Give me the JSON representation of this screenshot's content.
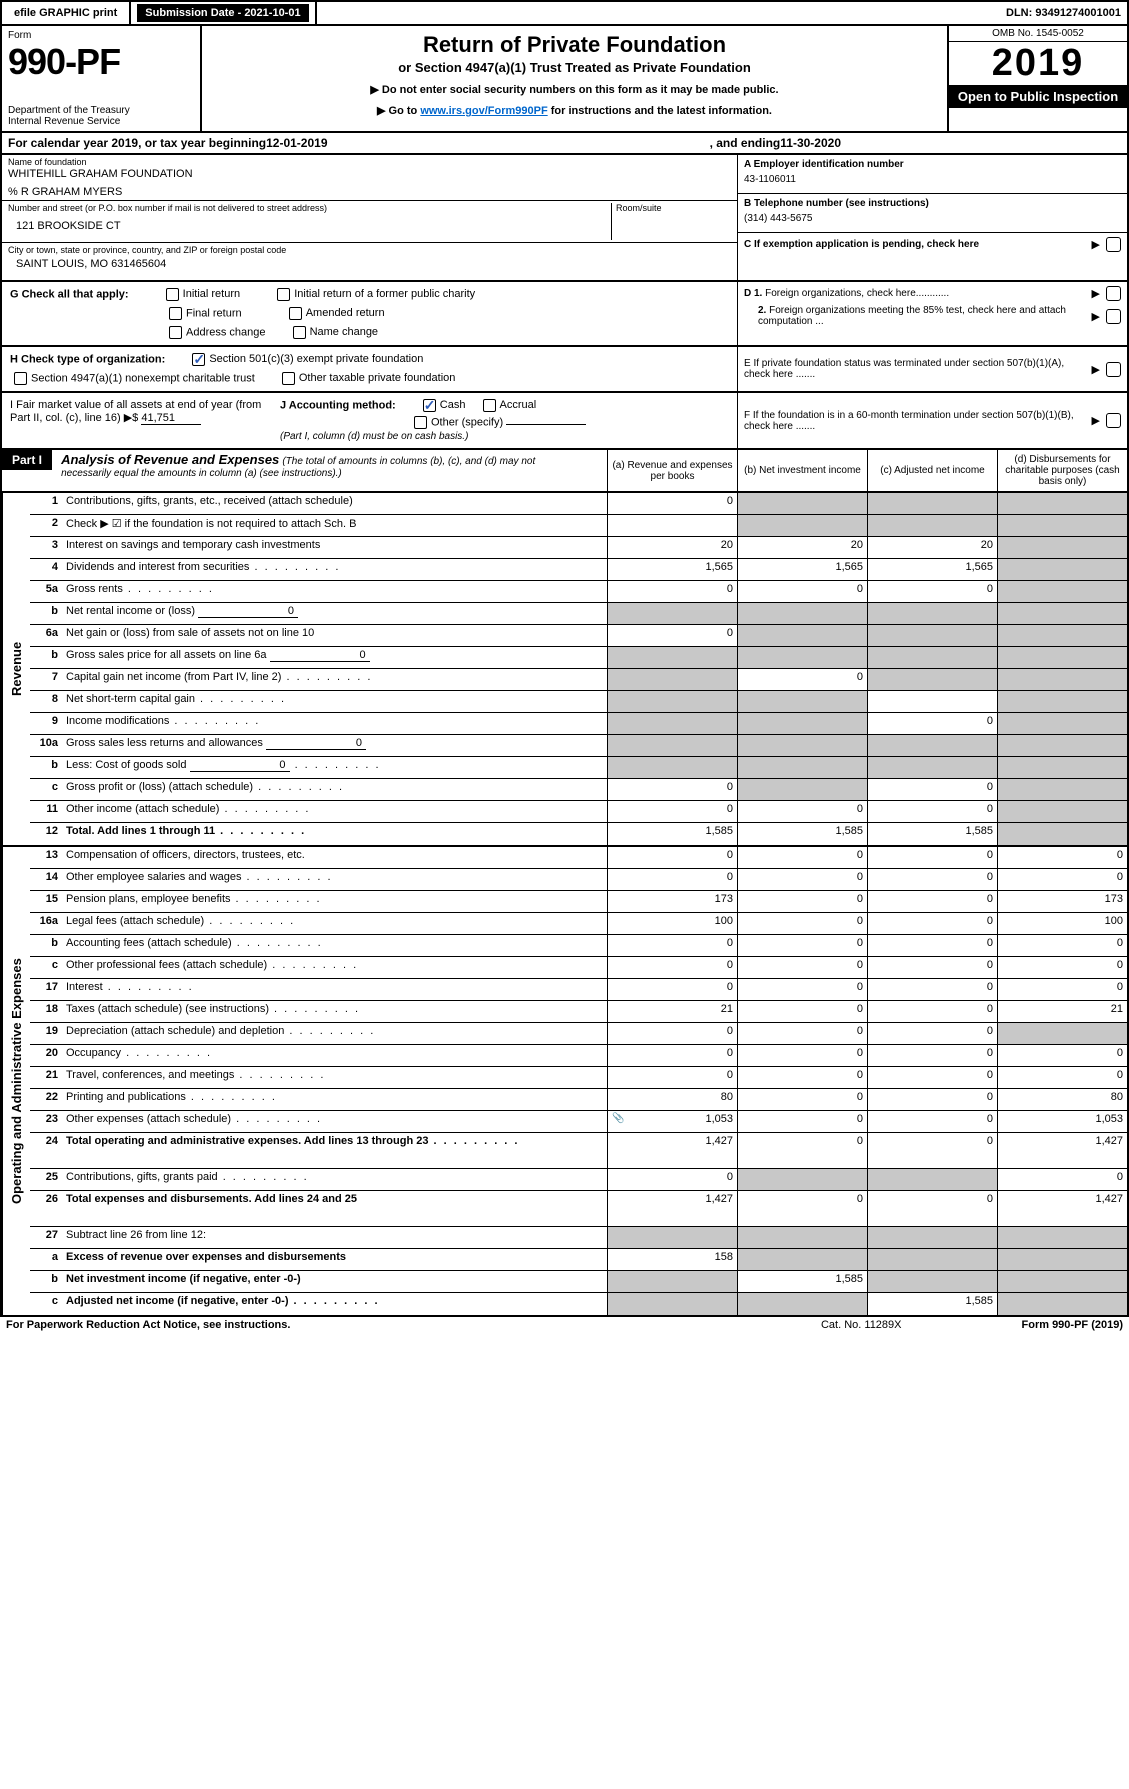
{
  "topbar": {
    "efile": "efile GRAPHIC print",
    "submission": "Submission Date - 2021-10-01",
    "dln": "DLN: 93491274001001"
  },
  "header": {
    "form_label": "Form",
    "form_num": "990-PF",
    "dept": "Department of the Treasury\nInternal Revenue Service",
    "title1": "Return of Private Foundation",
    "title2": "or Section 4947(a)(1) Trust Treated as Private Foundation",
    "note1": "▶ Do not enter social security numbers on this form as it may be made public.",
    "note2_pre": "▶ Go to ",
    "note2_link": "www.irs.gov/Form990PF",
    "note2_post": " for instructions and the latest information.",
    "omb": "OMB No. 1545-0052",
    "year": "2019",
    "open": "Open to Public Inspection"
  },
  "cal": {
    "pre": "For calendar year 2019, or tax year beginning ",
    "begin": "12-01-2019",
    "mid": ", and ending ",
    "end": "11-30-2020"
  },
  "info": {
    "name_lbl": "Name of foundation",
    "name": "WHITEHILL GRAHAM FOUNDATION",
    "care": "% R GRAHAM MYERS",
    "addr_lbl": "Number and street (or P.O. box number if mail is not delivered to street address)",
    "room_lbl": "Room/suite",
    "addr": "121 BROOKSIDE CT",
    "city_lbl": "City or town, state or province, country, and ZIP or foreign postal code",
    "city": "SAINT LOUIS, MO  631465604",
    "ein_lbl": "A Employer identification number",
    "ein": "43-1106011",
    "tel_lbl": "B Telephone number (see instructions)",
    "tel": "(314) 443-5675",
    "c_lbl": "C If exemption application is pending, check here"
  },
  "g": {
    "label": "G Check all that apply:",
    "c1": "Initial return",
    "c2": "Initial return of a former public charity",
    "c3": "Final return",
    "c4": "Amended return",
    "c5": "Address change",
    "c6": "Name change"
  },
  "h": {
    "label": "H Check type of organization:",
    "c1": "Section 501(c)(3) exempt private foundation",
    "c2": "Section 4947(a)(1) nonexempt charitable trust",
    "c3": "Other taxable private foundation"
  },
  "d": {
    "d1": "D 1. Foreign organizations, check here............",
    "d2": "2. Foreign organizations meeting the 85% test, check here and attach computation ..."
  },
  "e": {
    "lbl": "E  If private foundation status was terminated under section 507(b)(1)(A), check here ......."
  },
  "f": {
    "lbl": "F  If the foundation is in a 60-month termination under section 507(b)(1)(B), check here ......."
  },
  "i": {
    "lbl": "I Fair market value of all assets at end of year (from Part II, col. (c), line 16) ▶$",
    "val": "41,751"
  },
  "j": {
    "lbl": "J Accounting method:",
    "c1": "Cash",
    "c2": "Accrual",
    "c3": "Other (specify)",
    "note": "(Part I, column (d) must be on cash basis.)"
  },
  "part1": {
    "hdr": "Part I",
    "title": "Analysis of Revenue and Expenses",
    "sub": "(The total of amounts in columns (b), (c), and (d) may not necessarily equal the amounts in column (a) (see instructions).)",
    "col_a": "(a)   Revenue and expenses per books",
    "col_b": "(b)  Net investment income",
    "col_c": "(c)  Adjusted net income",
    "col_d": "(d)  Disbursements for charitable purposes (cash basis only)"
  },
  "sections": {
    "revenue": {
      "label": "Revenue",
      "rows": [
        {
          "n": "1",
          "t": "Contributions, gifts, grants, etc., received (attach schedule)",
          "a": "0",
          "b": "shade",
          "c": "shade",
          "d": "shade"
        },
        {
          "n": "2",
          "t": "Check ▶ ☑ if the foundation is not required to attach Sch. B",
          "dots": false,
          "a": "",
          "b": "shade",
          "c": "shade",
          "d": "shade"
        },
        {
          "n": "3",
          "t": "Interest on savings and temporary cash investments",
          "a": "20",
          "b": "20",
          "c": "20",
          "d": "shade"
        },
        {
          "n": "4",
          "t": "Dividends and interest from securities",
          "dots": true,
          "a": "1,565",
          "b": "1,565",
          "c": "1,565",
          "d": "shade"
        },
        {
          "n": "5a",
          "t": "Gross rents",
          "dots": true,
          "a": "0",
          "b": "0",
          "c": "0",
          "d": "shade"
        },
        {
          "n": "b",
          "t": "Net rental income or (loss)",
          "inline": "0",
          "a": "shade",
          "b": "shade",
          "c": "shade",
          "d": "shade"
        },
        {
          "n": "6a",
          "t": "Net gain or (loss) from sale of assets not on line 10",
          "a": "0",
          "b": "shade",
          "c": "shade",
          "d": "shade"
        },
        {
          "n": "b",
          "t": "Gross sales price for all assets on line 6a",
          "inline": "0",
          "a": "shade",
          "b": "shade",
          "c": "shade",
          "d": "shade"
        },
        {
          "n": "7",
          "t": "Capital gain net income (from Part IV, line 2)",
          "dots": true,
          "a": "shade",
          "b": "0",
          "c": "shade",
          "d": "shade"
        },
        {
          "n": "8",
          "t": "Net short-term capital gain",
          "dots": true,
          "a": "shade",
          "b": "shade",
          "c": "",
          "d": "shade"
        },
        {
          "n": "9",
          "t": "Income modifications",
          "dots": true,
          "a": "shade",
          "b": "shade",
          "c": "0",
          "d": "shade"
        },
        {
          "n": "10a",
          "t": "Gross sales less returns and allowances",
          "inline": "0",
          "a": "shade",
          "b": "shade",
          "c": "shade",
          "d": "shade"
        },
        {
          "n": "b",
          "t": "Less: Cost of goods sold",
          "dots": true,
          "inline": "0",
          "a": "shade",
          "b": "shade",
          "c": "shade",
          "d": "shade"
        },
        {
          "n": "c",
          "t": "Gross profit or (loss) (attach schedule)",
          "dots": true,
          "a": "0",
          "b": "shade",
          "c": "0",
          "d": "shade"
        },
        {
          "n": "11",
          "t": "Other income (attach schedule)",
          "dots": true,
          "a": "0",
          "b": "0",
          "c": "0",
          "d": "shade"
        },
        {
          "n": "12",
          "t": "Total. Add lines 1 through 11",
          "dots": true,
          "bold": true,
          "a": "1,585",
          "b": "1,585",
          "c": "1,585",
          "d": "shade"
        }
      ]
    },
    "expenses": {
      "label": "Operating and Administrative Expenses",
      "rows": [
        {
          "n": "13",
          "t": "Compensation of officers, directors, trustees, etc.",
          "a": "0",
          "b": "0",
          "c": "0",
          "d": "0"
        },
        {
          "n": "14",
          "t": "Other employee salaries and wages",
          "dots": true,
          "a": "0",
          "b": "0",
          "c": "0",
          "d": "0"
        },
        {
          "n": "15",
          "t": "Pension plans, employee benefits",
          "dots": true,
          "a": "173",
          "b": "0",
          "c": "0",
          "d": "173"
        },
        {
          "n": "16a",
          "t": "Legal fees (attach schedule)",
          "dots": true,
          "a": "100",
          "b": "0",
          "c": "0",
          "d": "100"
        },
        {
          "n": "b",
          "t": "Accounting fees (attach schedule)",
          "dots": true,
          "a": "0",
          "b": "0",
          "c": "0",
          "d": "0"
        },
        {
          "n": "c",
          "t": "Other professional fees (attach schedule)",
          "dots": true,
          "a": "0",
          "b": "0",
          "c": "0",
          "d": "0"
        },
        {
          "n": "17",
          "t": "Interest",
          "dots": true,
          "a": "0",
          "b": "0",
          "c": "0",
          "d": "0"
        },
        {
          "n": "18",
          "t": "Taxes (attach schedule) (see instructions)",
          "dots": true,
          "a": "21",
          "b": "0",
          "c": "0",
          "d": "21"
        },
        {
          "n": "19",
          "t": "Depreciation (attach schedule) and depletion",
          "dots": true,
          "a": "0",
          "b": "0",
          "c": "0",
          "d": "shade"
        },
        {
          "n": "20",
          "t": "Occupancy",
          "dots": true,
          "a": "0",
          "b": "0",
          "c": "0",
          "d": "0"
        },
        {
          "n": "21",
          "t": "Travel, conferences, and meetings",
          "dots": true,
          "a": "0",
          "b": "0",
          "c": "0",
          "d": "0"
        },
        {
          "n": "22",
          "t": "Printing and publications",
          "dots": true,
          "a": "80",
          "b": "0",
          "c": "0",
          "d": "80"
        },
        {
          "n": "23",
          "t": "Other expenses (attach schedule)",
          "dots": true,
          "icon": true,
          "a": "1,053",
          "b": "0",
          "c": "0",
          "d": "1,053"
        },
        {
          "n": "24",
          "t": "Total operating and administrative expenses. Add lines 13 through 23",
          "dots": true,
          "bold": true,
          "tall": true,
          "a": "1,427",
          "b": "0",
          "c": "0",
          "d": "1,427"
        },
        {
          "n": "25",
          "t": "Contributions, gifts, grants paid",
          "dots": true,
          "a": "0",
          "b": "shade",
          "c": "shade",
          "d": "0"
        },
        {
          "n": "26",
          "t": "Total expenses and disbursements. Add lines 24 and 25",
          "bold": true,
          "tall": true,
          "a": "1,427",
          "b": "0",
          "c": "0",
          "d": "1,427"
        },
        {
          "n": "27",
          "t": "Subtract line 26 from line 12:",
          "a": "shade",
          "b": "shade",
          "c": "shade",
          "d": "shade"
        },
        {
          "n": "a",
          "t": "Excess of revenue over expenses and disbursements",
          "bold": true,
          "a": "158",
          "b": "shade",
          "c": "shade",
          "d": "shade"
        },
        {
          "n": "b",
          "t": "Net investment income (if negative, enter -0-)",
          "bold": true,
          "a": "shade",
          "b": "1,585",
          "c": "shade",
          "d": "shade"
        },
        {
          "n": "c",
          "t": "Adjusted net income (if negative, enter -0-)",
          "dots": true,
          "bold": true,
          "a": "shade",
          "b": "shade",
          "c": "1,585",
          "d": "shade"
        }
      ]
    }
  },
  "footer": {
    "left": "For Paperwork Reduction Act Notice, see instructions.",
    "mid": "Cat. No. 11289X",
    "right": "Form 990-PF (2019)"
  },
  "colors": {
    "link": "#0066cc",
    "check": "#2e5cb8",
    "shade": "#c8c8c8"
  }
}
